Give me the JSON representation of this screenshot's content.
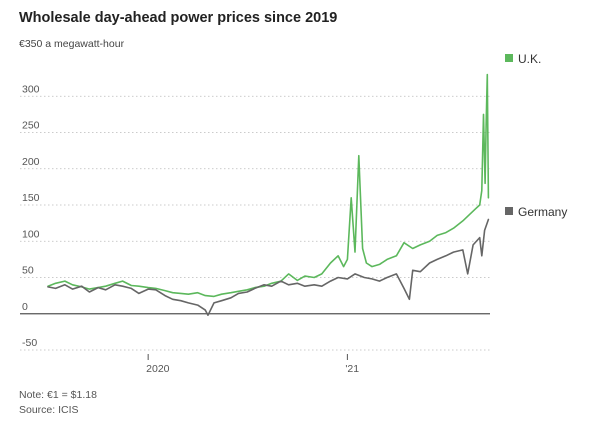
{
  "chart_data": {
    "type": "line",
    "title": "Wholesale day-ahead power prices since 2019",
    "subtitle": "€350 a megawatt-hour",
    "y_unit": "€ a megawatt-hour",
    "ylim": [
      -50,
      350
    ],
    "y_ticks": [
      -50,
      0,
      50,
      100,
      150,
      200,
      250,
      300
    ],
    "y_tick_labels": [
      "-50",
      "0",
      "50",
      "100",
      "150",
      "200",
      "250",
      "300"
    ],
    "x_range": [
      "2019-07-01",
      "2021-09-20"
    ],
    "x_ticks": [
      {
        "label": "2020",
        "date": "2020-01-01"
      },
      {
        "label": "'21",
        "date": "2021-01-01"
      }
    ],
    "grid": true,
    "legend": "right",
    "series": [
      {
        "name": "U.K.",
        "color": "#5cb85c",
        "points": [
          [
            "2019-07-01",
            38
          ],
          [
            "2019-07-15",
            42
          ],
          [
            "2019-08-01",
            45
          ],
          [
            "2019-08-15",
            40
          ],
          [
            "2019-09-01",
            37
          ],
          [
            "2019-09-15",
            34
          ],
          [
            "2019-10-01",
            36
          ],
          [
            "2019-10-15",
            38
          ],
          [
            "2019-11-01",
            42
          ],
          [
            "2019-11-15",
            45
          ],
          [
            "2019-12-01",
            39
          ],
          [
            "2019-12-15",
            38
          ],
          [
            "2020-01-01",
            36
          ],
          [
            "2020-01-15",
            35
          ],
          [
            "2020-02-01",
            32
          ],
          [
            "2020-02-15",
            29
          ],
          [
            "2020-03-01",
            28
          ],
          [
            "2020-03-15",
            27
          ],
          [
            "2020-04-01",
            29
          ],
          [
            "2020-04-15",
            25
          ],
          [
            "2020-05-01",
            24
          ],
          [
            "2020-05-15",
            27
          ],
          [
            "2020-06-01",
            29
          ],
          [
            "2020-06-15",
            31
          ],
          [
            "2020-07-01",
            33
          ],
          [
            "2020-07-15",
            36
          ],
          [
            "2020-08-01",
            38
          ],
          [
            "2020-08-15",
            42
          ],
          [
            "2020-09-01",
            45
          ],
          [
            "2020-09-15",
            55
          ],
          [
            "2020-10-01",
            46
          ],
          [
            "2020-10-15",
            52
          ],
          [
            "2020-11-01",
            50
          ],
          [
            "2020-11-15",
            55
          ],
          [
            "2020-12-01",
            70
          ],
          [
            "2020-12-15",
            80
          ],
          [
            "2020-12-25",
            65
          ],
          [
            "2021-01-01",
            75
          ],
          [
            "2021-01-08",
            160
          ],
          [
            "2021-01-15",
            85
          ],
          [
            "2021-01-22",
            218
          ],
          [
            "2021-01-29",
            90
          ],
          [
            "2021-02-05",
            70
          ],
          [
            "2021-02-15",
            65
          ],
          [
            "2021-03-01",
            68
          ],
          [
            "2021-03-15",
            75
          ],
          [
            "2021-04-01",
            80
          ],
          [
            "2021-04-15",
            98
          ],
          [
            "2021-05-01",
            90
          ],
          [
            "2021-05-15",
            95
          ],
          [
            "2021-06-01",
            100
          ],
          [
            "2021-06-15",
            108
          ],
          [
            "2021-07-01",
            112
          ],
          [
            "2021-07-15",
            118
          ],
          [
            "2021-08-01",
            128
          ],
          [
            "2021-08-15",
            138
          ],
          [
            "2021-08-25",
            145
          ],
          [
            "2021-09-01",
            150
          ],
          [
            "2021-09-05",
            170
          ],
          [
            "2021-09-08",
            275
          ],
          [
            "2021-09-11",
            180
          ],
          [
            "2021-09-13",
            265
          ],
          [
            "2021-09-15",
            330
          ],
          [
            "2021-09-17",
            160
          ]
        ]
      },
      {
        "name": "Germany",
        "color": "#666666",
        "points": [
          [
            "2019-07-01",
            37
          ],
          [
            "2019-07-15",
            35
          ],
          [
            "2019-08-01",
            40
          ],
          [
            "2019-08-15",
            34
          ],
          [
            "2019-09-01",
            38
          ],
          [
            "2019-09-15",
            30
          ],
          [
            "2019-10-01",
            36
          ],
          [
            "2019-10-15",
            33
          ],
          [
            "2019-11-01",
            40
          ],
          [
            "2019-11-15",
            38
          ],
          [
            "2019-12-01",
            35
          ],
          [
            "2019-12-15",
            28
          ],
          [
            "2020-01-01",
            34
          ],
          [
            "2020-01-15",
            33
          ],
          [
            "2020-02-01",
            25
          ],
          [
            "2020-02-15",
            20
          ],
          [
            "2020-03-01",
            18
          ],
          [
            "2020-03-15",
            15
          ],
          [
            "2020-04-01",
            12
          ],
          [
            "2020-04-15",
            5
          ],
          [
            "2020-04-20",
            -2
          ],
          [
            "2020-05-01",
            15
          ],
          [
            "2020-05-15",
            18
          ],
          [
            "2020-06-01",
            22
          ],
          [
            "2020-06-15",
            28
          ],
          [
            "2020-07-01",
            30
          ],
          [
            "2020-07-15",
            35
          ],
          [
            "2020-08-01",
            40
          ],
          [
            "2020-08-15",
            38
          ],
          [
            "2020-09-01",
            45
          ],
          [
            "2020-09-15",
            40
          ],
          [
            "2020-10-01",
            42
          ],
          [
            "2020-10-15",
            38
          ],
          [
            "2020-11-01",
            40
          ],
          [
            "2020-11-15",
            38
          ],
          [
            "2020-12-01",
            45
          ],
          [
            "2020-12-15",
            50
          ],
          [
            "2021-01-01",
            48
          ],
          [
            "2021-01-15",
            55
          ],
          [
            "2021-02-01",
            50
          ],
          [
            "2021-02-15",
            48
          ],
          [
            "2021-03-01",
            45
          ],
          [
            "2021-03-15",
            50
          ],
          [
            "2021-04-01",
            55
          ],
          [
            "2021-04-15",
            35
          ],
          [
            "2021-04-25",
            20
          ],
          [
            "2021-05-01",
            60
          ],
          [
            "2021-05-15",
            58
          ],
          [
            "2021-06-01",
            70
          ],
          [
            "2021-06-15",
            75
          ],
          [
            "2021-07-01",
            80
          ],
          [
            "2021-07-15",
            85
          ],
          [
            "2021-08-01",
            88
          ],
          [
            "2021-08-10",
            55
          ],
          [
            "2021-08-20",
            95
          ],
          [
            "2021-09-01",
            105
          ],
          [
            "2021-09-05",
            80
          ],
          [
            "2021-09-10",
            115
          ],
          [
            "2021-09-17",
            130
          ]
        ]
      }
    ]
  },
  "footer": {
    "note": "Note: €1 = $1.18",
    "source": "Source: ICIS"
  }
}
